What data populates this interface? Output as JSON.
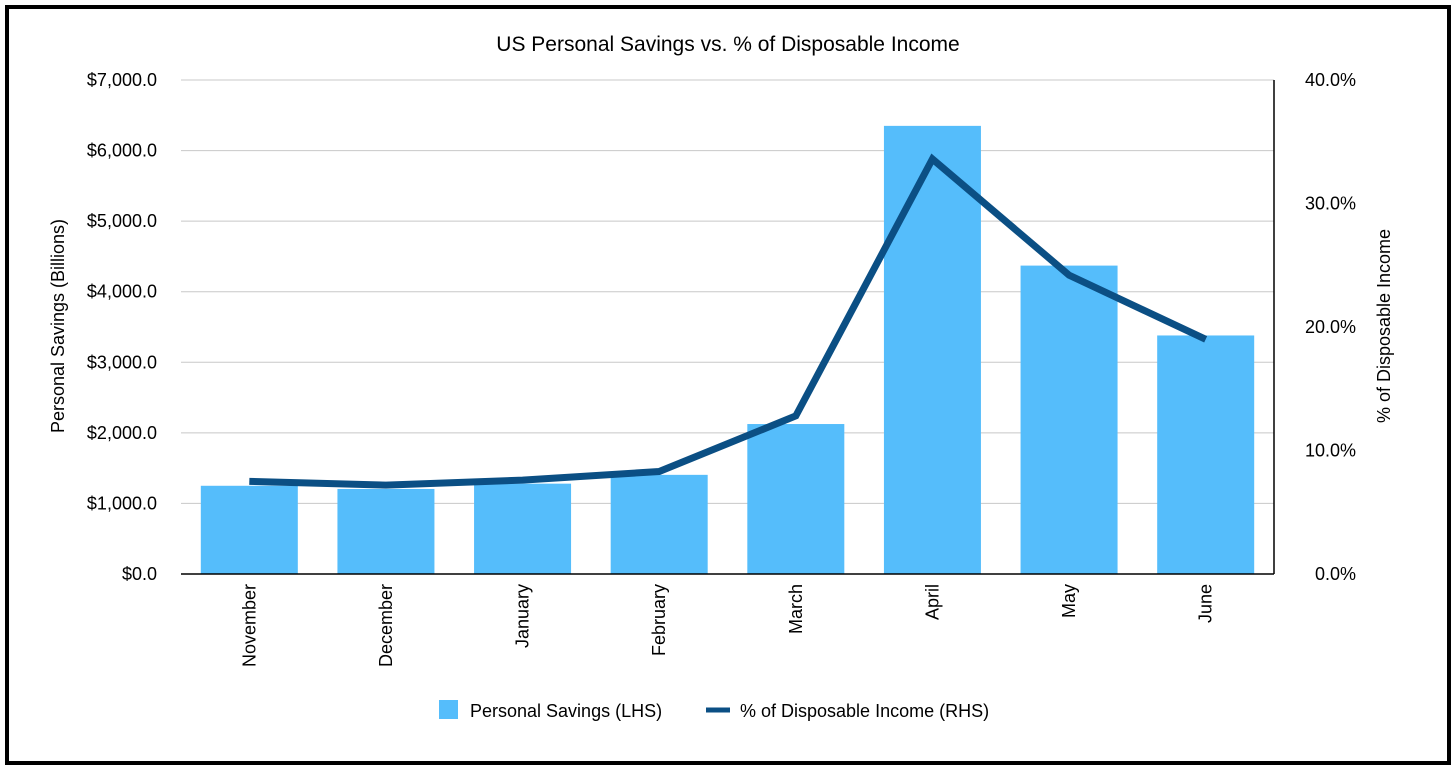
{
  "chart_data": {
    "type": "bar",
    "title": "US Personal Savings vs. % of Disposable Income",
    "categories": [
      "November",
      "December",
      "January",
      "February",
      "March",
      "April",
      "May",
      "June"
    ],
    "series": [
      {
        "name": "Personal Savings (LHS)",
        "type": "bar",
        "axis": "left",
        "color": "#55BDFB",
        "values": [
          1250,
          1205,
          1280,
          1405,
          2125,
          6350,
          4370,
          3380
        ]
      },
      {
        "name": "% of Disposable Income (RHS)",
        "type": "line",
        "axis": "right",
        "color": "#0B4F84",
        "values": [
          7.5,
          7.2,
          7.6,
          8.3,
          12.8,
          33.6,
          24.2,
          19.0
        ]
      }
    ],
    "left_axis": {
      "label": "Personal Savings (Billions)",
      "ylim": [
        0,
        7000
      ],
      "ticks": [
        0,
        1000,
        2000,
        3000,
        4000,
        5000,
        6000,
        7000
      ],
      "tick_labels": [
        "$0.0",
        "$1,000.0",
        "$2,000.0",
        "$3,000.0",
        "$4,000.0",
        "$5,000.0",
        "$6,000.0",
        "$7,000.0"
      ]
    },
    "right_axis": {
      "label": "% of Disposable Income",
      "ylim": [
        0,
        40
      ],
      "ticks": [
        0,
        10,
        20,
        30,
        40
      ],
      "tick_labels": [
        "0.0%",
        "10.0%",
        "20.0%",
        "30.0%",
        "40.0%"
      ]
    },
    "grid": true,
    "legend_position": "bottom-center"
  }
}
